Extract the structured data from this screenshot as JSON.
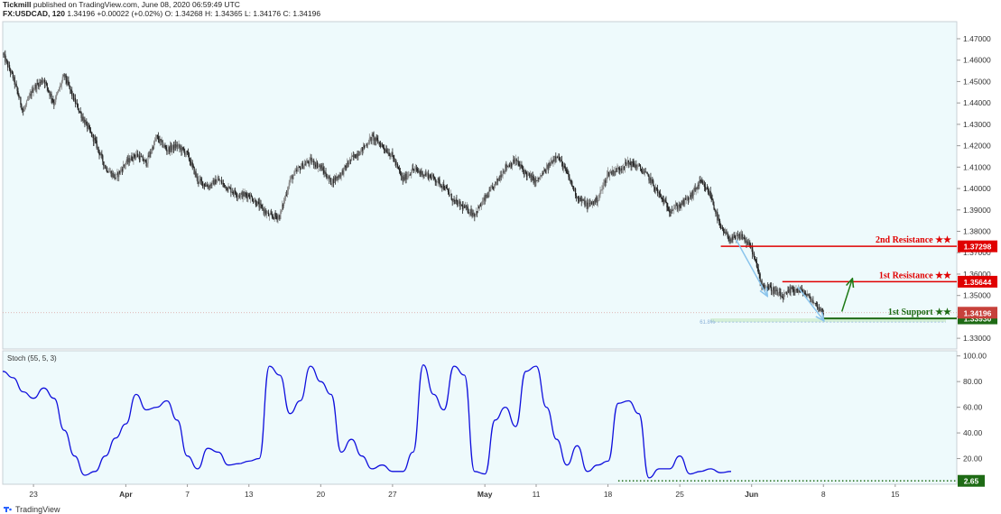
{
  "header": {
    "publisher": "Tickmill",
    "published_text": "published on TradingView.com, June 08, 2020 06:59:49 UTC",
    "symbol_line": "FX:USDCAD, 120",
    "price_values": "1.34196 +0.00022 (+0.02%) O: 1.34268 H: 1.34365 L: 1.34176 C: 1.34196"
  },
  "footer": {
    "brand": "TradingView"
  },
  "colors": {
    "background": "#eefafc",
    "resistance": "#e00000",
    "support": "#1e6b15",
    "stoch_line": "#1010dd",
    "arrow_blue": "#8ac4ec",
    "arrow_green": "#1e7a16",
    "current_price": "#c7413b"
  },
  "chart_data": [
    {
      "type": "candlestick",
      "name": "price",
      "title": "",
      "ylim": [
        1.325,
        1.478
      ],
      "y_ticks": [
        "1.47000",
        "1.46000",
        "1.45000",
        "1.44000",
        "1.43000",
        "1.42000",
        "1.41000",
        "1.40000",
        "1.39000",
        "1.38000",
        "1.37000",
        "1.36000",
        "1.35000",
        "1.34000",
        "1.33000"
      ],
      "x_tick_labels": [
        "23",
        "Apr",
        "7",
        "13",
        "20",
        "27",
        "May",
        "11",
        "18",
        "25",
        "Jun",
        "8",
        "15"
      ],
      "x_tick_days": [
        0,
        9,
        15,
        21,
        28,
        35,
        44,
        49,
        56,
        63,
        70,
        77,
        84
      ],
      "close_path": [
        [
          -3,
          1.463
        ],
        [
          -2,
          1.452
        ],
        [
          -1,
          1.436
        ],
        [
          0,
          1.447
        ],
        [
          1,
          1.451
        ],
        [
          2,
          1.44
        ],
        [
          3,
          1.453
        ],
        [
          4,
          1.441
        ],
        [
          5,
          1.431
        ],
        [
          6,
          1.422
        ],
        [
          7,
          1.41
        ],
        [
          8,
          1.405
        ],
        [
          9,
          1.412
        ],
        [
          10,
          1.416
        ],
        [
          11,
          1.412
        ],
        [
          12,
          1.424
        ],
        [
          13,
          1.418
        ],
        [
          14,
          1.42
        ],
        [
          15,
          1.416
        ],
        [
          16,
          1.404
        ],
        [
          17,
          1.401
        ],
        [
          18,
          1.404
        ],
        [
          19,
          1.4
        ],
        [
          20,
          1.397
        ],
        [
          21,
          1.397
        ],
        [
          22,
          1.392
        ],
        [
          23,
          1.387
        ],
        [
          24,
          1.387
        ],
        [
          25,
          1.404
        ],
        [
          26,
          1.41
        ],
        [
          27,
          1.413
        ],
        [
          28,
          1.41
        ],
        [
          29,
          1.403
        ],
        [
          30,
          1.407
        ],
        [
          31,
          1.414
        ],
        [
          32,
          1.418
        ],
        [
          33,
          1.424
        ],
        [
          34,
          1.42
        ],
        [
          35,
          1.415
        ],
        [
          36,
          1.404
        ],
        [
          37,
          1.409
        ],
        [
          38,
          1.407
        ],
        [
          39,
          1.405
        ],
        [
          40,
          1.401
        ],
        [
          41,
          1.394
        ],
        [
          42,
          1.391
        ],
        [
          43,
          1.388
        ],
        [
          44,
          1.395
        ],
        [
          45,
          1.402
        ],
        [
          46,
          1.41
        ],
        [
          47,
          1.413
        ],
        [
          48,
          1.407
        ],
        [
          49,
          1.403
        ],
        [
          50,
          1.409
        ],
        [
          51,
          1.416
        ],
        [
          52,
          1.407
        ],
        [
          53,
          1.396
        ],
        [
          54,
          1.392
        ],
        [
          55,
          1.395
        ],
        [
          56,
          1.407
        ],
        [
          57,
          1.409
        ],
        [
          58,
          1.412
        ],
        [
          59,
          1.41
        ],
        [
          60,
          1.405
        ],
        [
          61,
          1.397
        ],
        [
          62,
          1.39
        ],
        [
          63,
          1.392
        ],
        [
          64,
          1.396
        ],
        [
          65,
          1.403
        ],
        [
          66,
          1.397
        ],
        [
          67,
          1.381
        ],
        [
          68,
          1.376
        ],
        [
          69,
          1.378
        ],
        [
          70,
          1.372
        ],
        [
          71,
          1.355
        ],
        [
          72,
          1.353
        ],
        [
          73,
          1.349
        ],
        [
          74,
          1.353
        ],
        [
          75,
          1.352
        ],
        [
          76,
          1.347
        ],
        [
          77,
          1.342
        ]
      ],
      "levels": [
        {
          "label": "2nd Resistance ★★",
          "value": "1.37298",
          "price": 1.37298,
          "from_day": 67
        },
        {
          "label": "1st Resistance ★★",
          "value": "1.35644",
          "price": 1.35644,
          "from_day": 73
        },
        {
          "label": "1st Support ★★",
          "value": "1.33930",
          "price": 1.3393,
          "from_day": 77
        }
      ],
      "current_price": {
        "value": "1.34196",
        "price": 1.34196
      },
      "fib": {
        "label": "61.8%",
        "price": 1.3376,
        "from_day": 66,
        "to_day": 77
      },
      "arrows": [
        {
          "color": "blue",
          "from": [
            68.5,
            1.376
          ],
          "to": [
            71.5,
            1.35
          ]
        },
        {
          "color": "blue",
          "from": [
            74.5,
            1.354
          ],
          "to": [
            77,
            1.3385
          ]
        },
        {
          "color": "green",
          "from": [
            78.8,
            1.3425
          ],
          "to": [
            79.8,
            1.3575
          ]
        }
      ]
    },
    {
      "type": "line",
      "name": "Stoch (55, 5, 3)",
      "title": "Stoch (55, 5, 3)",
      "ylim": [
        0,
        104
      ],
      "y_ticks": [
        "100.00",
        "80.00",
        "60.00",
        "40.00",
        "20.00"
      ],
      "current": {
        "value": "2.65",
        "level": 2.65,
        "from_day": 57
      },
      "series": [
        {
          "values": [
            [
              -3,
              88
            ],
            [
              -2,
              83
            ],
            [
              -1,
              72
            ],
            [
              0,
              67
            ],
            [
              1,
              75
            ],
            [
              2,
              67
            ],
            [
              3,
              42
            ],
            [
              4,
              22
            ],
            [
              5,
              7
            ],
            [
              6,
              10
            ],
            [
              7,
              22
            ],
            [
              8,
              36
            ],
            [
              9,
              47
            ],
            [
              10,
              70
            ],
            [
              11,
              58
            ],
            [
              12,
              60
            ],
            [
              13,
              65
            ],
            [
              14,
              50
            ],
            [
              15,
              22
            ],
            [
              16,
              12
            ],
            [
              17,
              28
            ],
            [
              18,
              25
            ],
            [
              19,
              15
            ],
            [
              20,
              16
            ],
            [
              21,
              18
            ],
            [
              22,
              20
            ],
            [
              23,
              92
            ],
            [
              24,
              85
            ],
            [
              25,
              55
            ],
            [
              26,
              65
            ],
            [
              27,
              92
            ],
            [
              28,
              80
            ],
            [
              29,
              70
            ],
            [
              30,
              25
            ],
            [
              31,
              35
            ],
            [
              32,
              22
            ],
            [
              33,
              12
            ],
            [
              34,
              15
            ],
            [
              35,
              10
            ],
            [
              36,
              10
            ],
            [
              37,
              25
            ],
            [
              38,
              93
            ],
            [
              39,
              70
            ],
            [
              40,
              58
            ],
            [
              41,
              92
            ],
            [
              42,
              85
            ],
            [
              43,
              10
            ],
            [
              44,
              8
            ],
            [
              45,
              50
            ],
            [
              46,
              60
            ],
            [
              47,
              45
            ],
            [
              48,
              88
            ],
            [
              49,
              92
            ],
            [
              50,
              60
            ],
            [
              51,
              35
            ],
            [
              52,
              15
            ],
            [
              53,
              30
            ],
            [
              54,
              10
            ],
            [
              55,
              15
            ],
            [
              56,
              18
            ],
            [
              57,
              63
            ],
            [
              58,
              65
            ],
            [
              59,
              55
            ],
            [
              60,
              5
            ],
            [
              61,
              12
            ],
            [
              62,
              12
            ],
            [
              63,
              22
            ],
            [
              64,
              8
            ],
            [
              65,
              10
            ],
            [
              66,
              12
            ],
            [
              67,
              9
            ],
            [
              68,
              10
            ]
          ]
        }
      ]
    }
  ]
}
